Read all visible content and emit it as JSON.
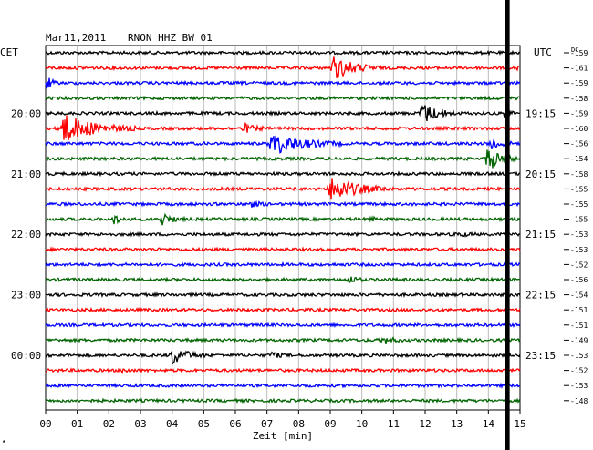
{
  "header": {
    "date": "Mar11,2011",
    "station": "RNON HHZ BW 01",
    "left_tz": "CET",
    "right_tz": "UTC",
    "dc_label": "DC"
  },
  "chart_data": {
    "type": "line",
    "xlabel": "Zeit [min]",
    "x_ticks": [
      "00",
      "01",
      "02",
      "03",
      "04",
      "05",
      "06",
      "07",
      "08",
      "09",
      "10",
      "11",
      "12",
      "13",
      "14",
      "15"
    ],
    "xlim": [
      0,
      15
    ],
    "left_time_labels": [
      {
        "trace": 4,
        "text": "20:00"
      },
      {
        "trace": 8,
        "text": "21:00"
      },
      {
        "trace": 12,
        "text": "22:00"
      },
      {
        "trace": 16,
        "text": "23:00"
      },
      {
        "trace": 20,
        "text": "00:00"
      }
    ],
    "right_time_labels": [
      {
        "trace": 4,
        "text": "19:15"
      },
      {
        "trace": 8,
        "text": "20:15"
      },
      {
        "trace": 12,
        "text": "21:15"
      },
      {
        "trace": 16,
        "text": "22:15"
      },
      {
        "trace": 20,
        "text": "23:15"
      }
    ],
    "trace_colors": [
      "#000000",
      "#ff0000",
      "#0000ff",
      "#006400"
    ],
    "dc_values": [
      "-159",
      "-161",
      "-159",
      "-158",
      "-159",
      "-160",
      "-156",
      "-154",
      "-158",
      "-155",
      "-155",
      "-155",
      "-153",
      "-153",
      "-152",
      "-156",
      "-154",
      "-151",
      "-151",
      "-149",
      "-153",
      "-152",
      "-153",
      "-148"
    ],
    "marker_minute": 14.6,
    "events": [
      {
        "trace": 1,
        "start": 9.0,
        "amp": 13,
        "dur": 1.6
      },
      {
        "trace": 1,
        "start": 14.9,
        "amp": 6,
        "dur": 0.1
      },
      {
        "trace": 2,
        "start": 0.0,
        "amp": 8,
        "dur": 0.4
      },
      {
        "trace": 4,
        "start": 11.8,
        "amp": 12,
        "dur": 1.2
      },
      {
        "trace": 4,
        "start": 14.5,
        "amp": 12,
        "dur": 0.3
      },
      {
        "trace": 5,
        "start": 0.35,
        "amp": 16,
        "dur": 2.5
      },
      {
        "trace": 5,
        "start": 6.2,
        "amp": 5,
        "dur": 0.8
      },
      {
        "trace": 6,
        "start": 7.0,
        "amp": 12,
        "dur": 2.4
      },
      {
        "trace": 6,
        "start": 14.0,
        "amp": 8,
        "dur": 0.8
      },
      {
        "trace": 7,
        "start": 13.9,
        "amp": 14,
        "dur": 1.0
      },
      {
        "trace": 9,
        "start": 8.9,
        "amp": 14,
        "dur": 2.0
      },
      {
        "trace": 10,
        "start": 6.3,
        "amp": 4,
        "dur": 0.8
      },
      {
        "trace": 11,
        "start": 2.1,
        "amp": 5,
        "dur": 0.6
      },
      {
        "trace": 11,
        "start": 3.6,
        "amp": 7,
        "dur": 0.8
      },
      {
        "trace": 11,
        "start": 10.2,
        "amp": 3,
        "dur": 0.4
      },
      {
        "trace": 12,
        "start": 13.0,
        "amp": 3,
        "dur": 0.6
      },
      {
        "trace": 15,
        "start": 9.5,
        "amp": 5,
        "dur": 0.6
      },
      {
        "trace": 19,
        "start": 10.6,
        "amp": 5,
        "dur": 0.7
      },
      {
        "trace": 20,
        "start": 3.9,
        "amp": 10,
        "dur": 1.2
      },
      {
        "trace": 20,
        "start": 7.1,
        "amp": 4,
        "dur": 0.5
      },
      {
        "trace": 21,
        "start": 2.4,
        "amp": 3,
        "dur": 0.4
      }
    ]
  }
}
